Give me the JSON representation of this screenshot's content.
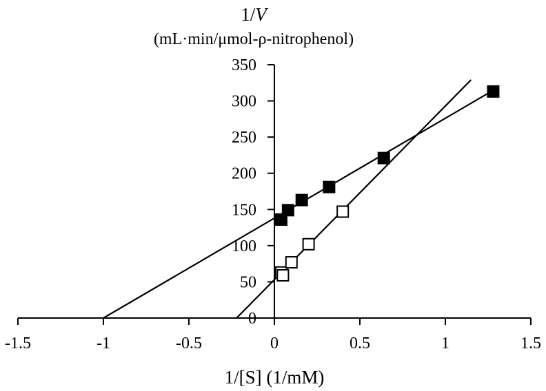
{
  "chart_data": {
    "type": "scatter",
    "title": "",
    "ylabel": {
      "line1_prefix": "1/",
      "line1_var": "V",
      "line2": "(mL·min/μmol-ρ-nitrophenol)"
    },
    "xlabel": "1/[S] (1/mM)",
    "xlim": [
      -1.5,
      1.5
    ],
    "ylim": [
      0,
      350
    ],
    "x_ticks": [
      -1.5,
      -1,
      -0.5,
      0,
      0.5,
      1,
      1.5
    ],
    "x_tick_labels": [
      "-1.5",
      "-1",
      "-0.5",
      "0",
      "0.5",
      "1",
      "1.5"
    ],
    "y_ticks": [
      0,
      50,
      100,
      150,
      200,
      250,
      300,
      350
    ],
    "y_tick_labels": [
      "0",
      "50",
      "100",
      "150",
      "200",
      "250",
      "300",
      "350"
    ],
    "grid": false,
    "legend": "none",
    "series": [
      {
        "marker": "filled-square",
        "color": "#000000",
        "points": [
          {
            "x": 0.04,
            "y": 136
          },
          {
            "x": 0.08,
            "y": 149
          },
          {
            "x": 0.16,
            "y": 163
          },
          {
            "x": 0.32,
            "y": 181
          },
          {
            "x": 0.64,
            "y": 221
          },
          {
            "x": 1.28,
            "y": 313
          }
        ],
        "fit_line": {
          "x_start": -1.0,
          "x_end": 1.28,
          "slope": 138,
          "intercept": 138
        }
      },
      {
        "marker": "open-square",
        "color": "#000000",
        "points": [
          {
            "x": 0.04,
            "y": 63
          },
          {
            "x": 0.05,
            "y": 59
          },
          {
            "x": 0.1,
            "y": 77
          },
          {
            "x": 0.2,
            "y": 102
          },
          {
            "x": 0.4,
            "y": 147
          }
        ],
        "fit_line": {
          "x_start": -0.22,
          "x_end": 1.15,
          "slope": 240,
          "intercept": 53
        }
      }
    ]
  }
}
